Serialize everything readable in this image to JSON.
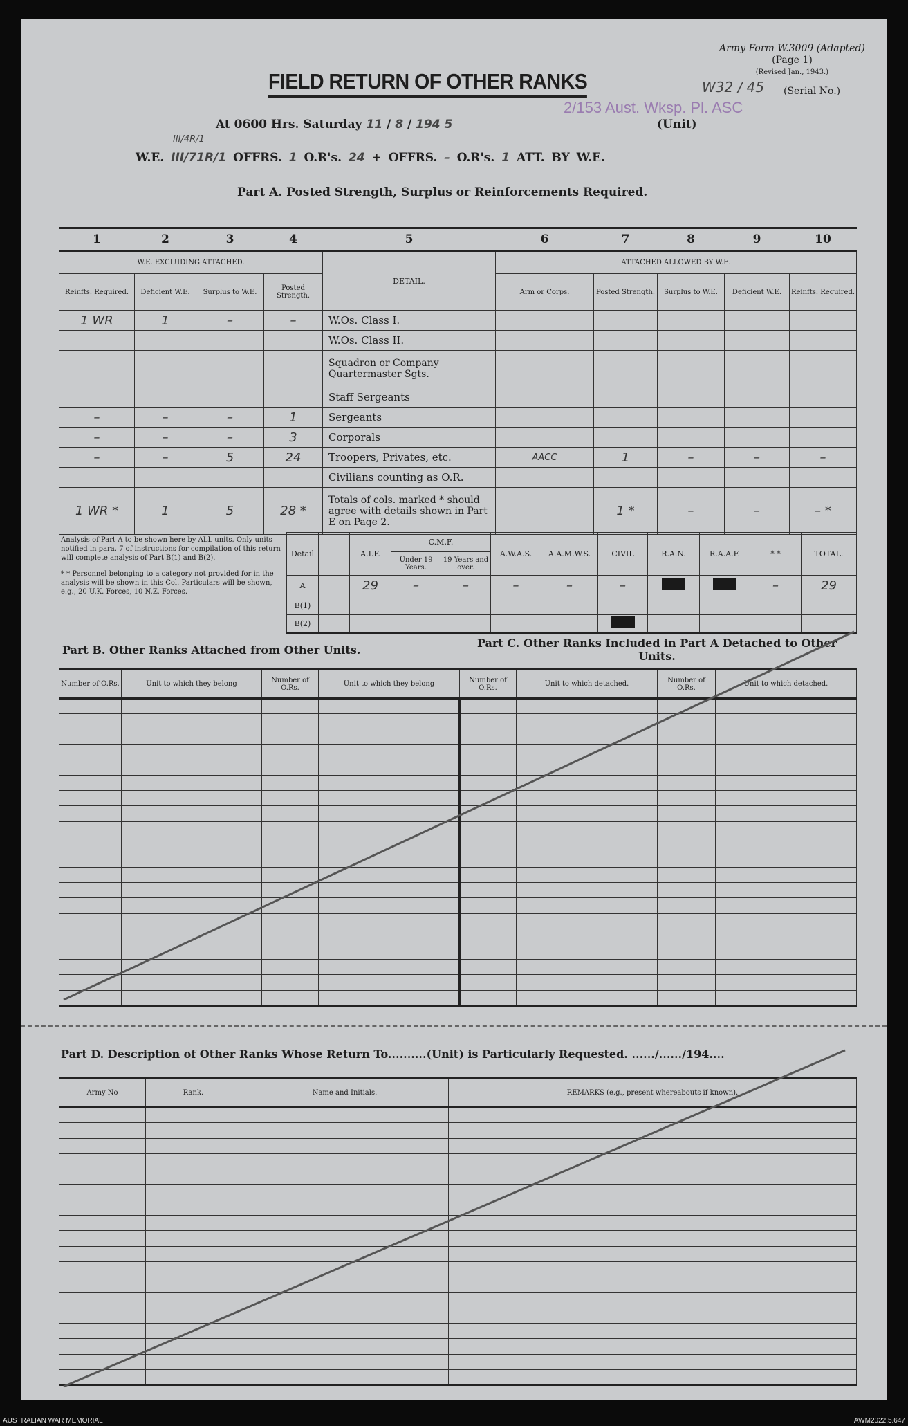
{
  "header": {
    "form_id": "Army Form W.3009 (Adapted)",
    "page": "(Page 1)",
    "revised": "(Revised Jan., 1943.)",
    "title": "FIELD RETURN OF OTHER RANKS",
    "serial_value": "W32 / 45",
    "serial_label": "(Serial No.)",
    "unit_stamp": "2/153 Aust. Wksp. Pl. ASC",
    "at_line": "At 0600 Hrs. Saturday",
    "date_day": "11",
    "date_month": "8",
    "date_year": "194 5",
    "unit_label": "(Unit)",
    "we_label": "W.E.",
    "we_value": "III/71R/1",
    "we_annot": "III/4R/1",
    "offrs_label": "OFFRS.",
    "offrs_value": "1",
    "ors_label": "O.R's.",
    "ors_value": "24",
    "plus": "+",
    "offrs2_value": "–",
    "ors2_value": "1",
    "att_label": "ATT. BY W.E.",
    "part_a_title": "Part A. Posted Strength, Surplus or Reinforcements Required."
  },
  "part_a": {
    "col_numbers": [
      "1",
      "2",
      "3",
      "4",
      "5",
      "6",
      "7",
      "8",
      "9",
      "10"
    ],
    "group_left": "W.E. EXCLUDING ATTACHED.",
    "group_right": "ATTACHED ALLOWED BY W.E.",
    "detail_header": "DETAIL.",
    "subheaders_left": [
      "Reinfts. Required.",
      "Deficient W.E.",
      "Surplus to W.E.",
      "Posted Strength."
    ],
    "subheaders_right": [
      "Arm or Corps.",
      "Posted Strength.",
      "Surplus to W.E.",
      "Deficient W.E.",
      "Reinfts. Required."
    ],
    "rows": [
      {
        "detail": "W.Os. Class I.",
        "left": [
          "1 WR",
          "1",
          "–",
          "–"
        ],
        "right": [
          "",
          "",
          "",
          "",
          ""
        ]
      },
      {
        "detail": "W.Os. Class II.",
        "left": [
          "",
          "",
          "",
          ""
        ],
        "right": [
          "",
          "",
          "",
          "",
          ""
        ]
      },
      {
        "detail": "Squadron or Company Quartermaster Sgts.",
        "left": [
          "",
          "",
          "",
          ""
        ],
        "right": [
          "",
          "",
          "",
          "",
          ""
        ]
      },
      {
        "detail": "Staff Sergeants",
        "left": [
          "",
          "",
          "",
          ""
        ],
        "right": [
          "",
          "",
          "",
          "",
          ""
        ]
      },
      {
        "detail": "Sergeants",
        "left": [
          "–",
          "–",
          "–",
          "1"
        ],
        "right": [
          "",
          "",
          "",
          "",
          ""
        ]
      },
      {
        "detail": "Corporals",
        "left": [
          "–",
          "–",
          "–",
          "3"
        ],
        "right": [
          "",
          "",
          "",
          "",
          ""
        ]
      },
      {
        "detail": "Troopers, Privates, etc.",
        "left": [
          "–",
          "–",
          "5",
          "24"
        ],
        "right": [
          "AACC",
          "1",
          "–",
          "–",
          "–"
        ]
      },
      {
        "detail": "Civilians counting as O.R.",
        "left": [
          "",
          "",
          "",
          ""
        ],
        "right": [
          "",
          "",
          "",
          "",
          ""
        ]
      },
      {
        "detail": "Totals of cols. marked * should agree with details shown in Part E on Page 2.",
        "left": [
          "1 WR *",
          "1",
          "5",
          "28 *"
        ],
        "right": [
          "",
          "1 *",
          "–",
          "–",
          "– *"
        ]
      }
    ]
  },
  "analysis": {
    "note1": "Analysis of Part A to be shown here by ALL units. Only units notified in para. 7 of instructions for compilation of this return will complete analysis of Part B(1) and B(2).",
    "note2": "* * Personnel belonging to a category not provided for in the analysis will be shown in this Col. Particulars will be shown, e.g., 20 U.K. Forces, 10 N.Z. Forces.",
    "detail_label": "Detail",
    "headers": [
      "A.I.F.",
      "A.W.A.S.",
      "A.A.M.W.S.",
      "CIVIL",
      "R.A.N.",
      "R.A.A.F.",
      "* *",
      "TOTAL."
    ],
    "cmf": "C.M.F.",
    "cmf_sub": [
      "Under 19 Years.",
      "19 Years and over."
    ],
    "rows": [
      {
        "label": "A",
        "aif": "29",
        "u19": "–",
        "o19": "–",
        "awas": "–",
        "aamws": "–",
        "civil": "–",
        "ran": "[redacted]",
        "raaf": "[redacted]",
        "other": "–",
        "total": "29"
      },
      {
        "label": "B(1)"
      },
      {
        "label": "B(2)",
        "civil": "[redacted]"
      }
    ]
  },
  "part_b": {
    "title": "Part B. Other Ranks Attached from Other Units.",
    "headers": [
      "Number of O.Rs.",
      "Unit to which they belong",
      "Number of O.Rs.",
      "Unit to which they belong"
    ]
  },
  "part_c": {
    "title": "Part C. Other Ranks Included in Part A Detached to Other Units.",
    "headers": [
      "Number of O.Rs.",
      "Unit to which detached.",
      "Number of O.Rs.",
      "Unit to which detached."
    ]
  },
  "part_d": {
    "title": "Part D. Description of Other Ranks Whose Return To..........(Unit) is Particularly Requested. ....../....../194....",
    "headers": [
      "Army No",
      "Rank.",
      "Name and Initials.",
      "REMARKS (e.g., present whereabouts if known)."
    ]
  },
  "footer": {
    "left": "AUSTRALIAN WAR MEMORIAL",
    "right": "AWM2022.5.647"
  }
}
